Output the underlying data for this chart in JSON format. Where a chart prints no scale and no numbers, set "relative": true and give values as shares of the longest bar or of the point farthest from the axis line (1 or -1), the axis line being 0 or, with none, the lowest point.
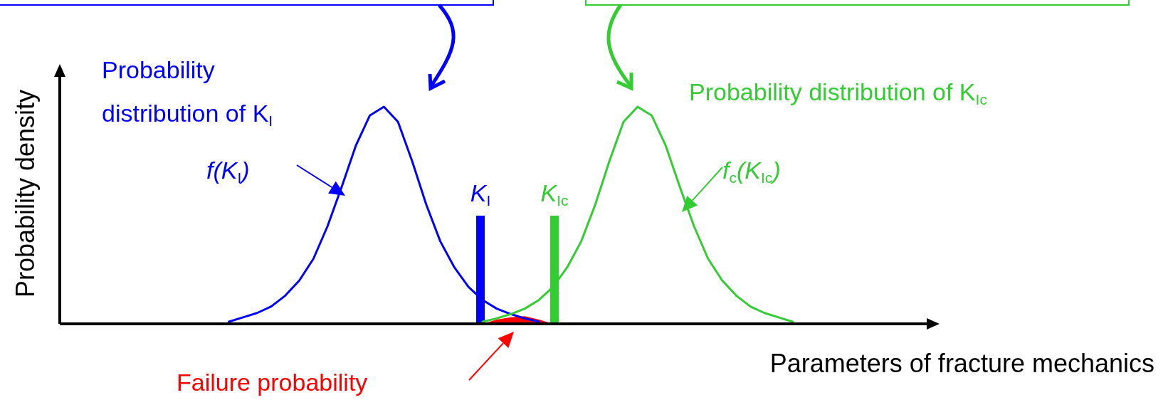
{
  "chart_data": {
    "type": "line",
    "relative": true,
    "xlabel": "Parameters of fracture mechanics",
    "ylabel": "Probability density",
    "categories": [
      null,
      null,
      null,
      null,
      null,
      null,
      null,
      null,
      null,
      null,
      null,
      null,
      null,
      null,
      null,
      null,
      null,
      null,
      null,
      null,
      null,
      null,
      null,
      null,
      null,
      null,
      null,
      null,
      null,
      null,
      null,
      null,
      null,
      null,
      null,
      null,
      null,
      null,
      null,
      null,
      null,
      null,
      null,
      null,
      null,
      null,
      null,
      null,
      null,
      null,
      null,
      null,
      null,
      null,
      null,
      null,
      null,
      null,
      null,
      null,
      null
    ],
    "annotations": [
      "Probability distribution of K$_{I}$",
      "f(K$_{I}$)",
      "Probability distribution of K$_{Ic}$",
      "f$_{c}$(K$_{Ic}$)",
      "Failure probability",
      "K$_{I}$",
      "K$_{Ic}$"
    ],
    "series": [
      {
        "color": "#0000ff",
        "values": [
          null,
          null,
          null,
          null,
          null,
          null,
          null,
          null,
          null,
          null,
          null,
          null,
          0.01,
          0.03,
          0.05,
          0.08,
          0.13,
          0.2,
          0.3,
          0.45,
          0.63,
          0.82,
          0.96,
          1.0,
          0.93,
          0.75,
          0.55,
          0.38,
          0.26,
          0.17,
          0.11,
          0.07,
          0.045,
          0.025,
          0.01,
          null,
          null,
          null,
          null,
          null,
          null,
          null,
          null,
          null,
          null,
          null,
          null,
          null,
          null,
          null,
          null,
          null,
          null,
          null,
          null,
          null,
          null,
          null,
          null,
          null,
          null
        ]
      },
      {
        "color": "#33cc33",
        "values": [
          null,
          null,
          null,
          null,
          null,
          null,
          null,
          null,
          null,
          null,
          null,
          null,
          null,
          null,
          null,
          null,
          null,
          null,
          null,
          null,
          null,
          null,
          null,
          null,
          null,
          null,
          null,
          null,
          null,
          null,
          0.01,
          0.025,
          0.045,
          0.07,
          0.11,
          0.17,
          0.26,
          0.38,
          0.55,
          0.75,
          0.93,
          1.0,
          0.96,
          0.82,
          0.63,
          0.45,
          0.3,
          0.2,
          0.13,
          0.08,
          0.05,
          0.03,
          0.01,
          null,
          null,
          null,
          null,
          null,
          null,
          null,
          null
        ]
      },
      {
        "type": "area",
        "color": "#ff0000",
        "values": [
          null,
          null,
          null,
          null,
          null,
          null,
          null,
          null,
          null,
          null,
          null,
          null,
          null,
          null,
          null,
          null,
          null,
          null,
          null,
          null,
          null,
          null,
          null,
          null,
          null,
          null,
          null,
          null,
          null,
          null,
          0,
          0.02,
          0.03,
          0.035,
          0.02,
          0,
          null,
          null,
          null,
          null,
          null,
          null,
          null,
          null,
          null,
          null,
          null,
          null,
          null,
          null,
          null,
          null,
          null,
          null,
          null,
          null,
          null,
          null,
          null,
          null,
          null
        ]
      }
    ]
  }
}
